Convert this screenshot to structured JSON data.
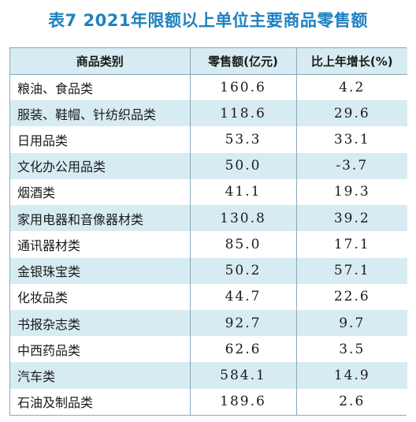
{
  "title": "表7  2021年限额以上单位主要商品零售额",
  "table": {
    "headers": [
      "商品类别",
      "零售额(亿元)",
      "比上年增长(%)"
    ],
    "rows": [
      {
        "category": "粮油、食品类",
        "sales": "160.6",
        "growth": "4.2"
      },
      {
        "category": "服装、鞋帽、针纺织品类",
        "sales": "118.6",
        "growth": "29.6"
      },
      {
        "category": "日用品类",
        "sales": "53.3",
        "growth": "33.1"
      },
      {
        "category": "文化办公用品类",
        "sales": "50.0",
        "growth": "-3.7"
      },
      {
        "category": "烟酒类",
        "sales": "41.1",
        "growth": "19.3"
      },
      {
        "category": "家用电器和音像器材类",
        "sales": "130.8",
        "growth": "39.2"
      },
      {
        "category": "通讯器材类",
        "sales": "85.0",
        "growth": "17.1"
      },
      {
        "category": "金银珠宝类",
        "sales": "50.2",
        "growth": "57.1"
      },
      {
        "category": "化妆品类",
        "sales": "44.7",
        "growth": "22.6"
      },
      {
        "category": "书报杂志类",
        "sales": "92.7",
        "growth": "9.7"
      },
      {
        "category": "中西药品类",
        "sales": "62.6",
        "growth": "3.5"
      },
      {
        "category": "汽车类",
        "sales": "584.1",
        "growth": "14.9"
      },
      {
        "category": "石油及制品类",
        "sales": "189.6",
        "growth": "2.6"
      }
    ]
  }
}
